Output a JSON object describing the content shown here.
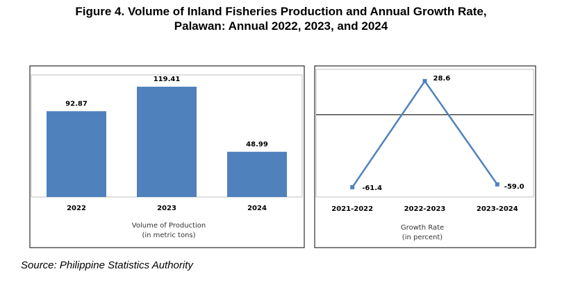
{
  "figure": {
    "title_line1": "Figure 4. Volume of Inland Fisheries Production and Annual Growth Rate,",
    "title_line2": "Palawan: Annual 2022, 2023, and 2024",
    "source": "Source: Philippine Statistics Authority"
  },
  "chart_data": [
    {
      "type": "bar",
      "categories": [
        "2022",
        "2023",
        "2024"
      ],
      "values": [
        92.87,
        119.41,
        48.99
      ],
      "value_labels": [
        "92.87",
        "119.41",
        "48.99"
      ],
      "xlabel_line1": "Volume of Production",
      "xlabel_line2": "(in metric tons)",
      "ylim": [
        0,
        130
      ],
      "grid": false,
      "color": "#4F81BD"
    },
    {
      "type": "line",
      "categories": [
        "2021-2022",
        "2022-2023",
        "2023-2024"
      ],
      "values": [
        -61.4,
        28.6,
        -59.0
      ],
      "value_labels": [
        "-61.4",
        "28.6",
        "-59.0"
      ],
      "xlabel_line1": "Growth Rate",
      "xlabel_line2": "(in percent)",
      "ylim": [
        -65,
        35
      ],
      "grid": false,
      "zero_line": true,
      "color": "#4F81BD"
    }
  ]
}
